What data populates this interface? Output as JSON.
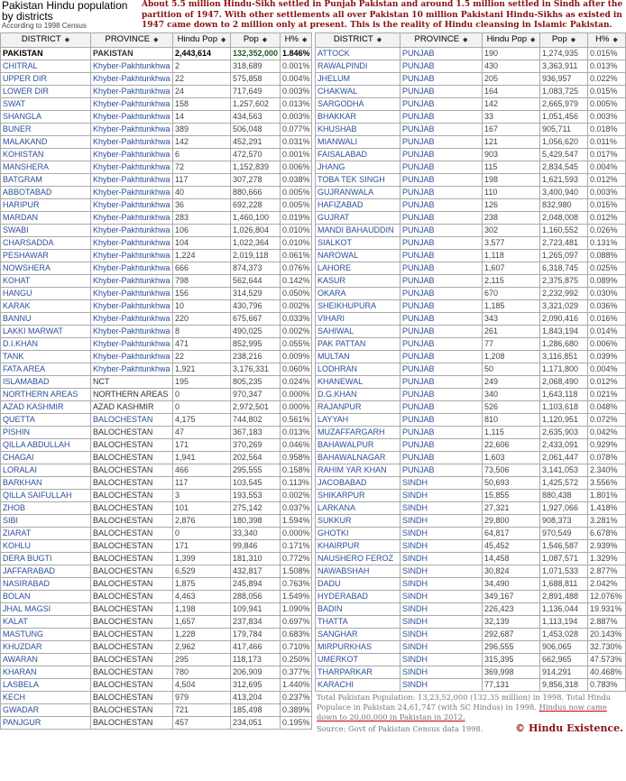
{
  "title": "Pakistan Hindu population by districts",
  "subtitle": "According to 1998 Census",
  "intro": "About 5.5 million Hindu-Sikh settled in Punjab Pakistan and around 1.5 million settled in Sindh after the partition of 1947. With other settlements all over Pakistan 10 million Pakistani Hindu-Sikhs as existed  in 1947 came down to 2 million only at present. This is the reality of Hindu cleansing in Islamic Pakistan.",
  "columns": [
    "DISTRICT",
    "PROVINCE",
    "Hindu Pop",
    "Pop",
    "H%"
  ],
  "sort_icon": "sort-diamond-icon",
  "colors": {
    "link": "#2a4f9a",
    "intro": "#8b1010",
    "header_bg": "#f2f2f2"
  },
  "left_rows": [
    [
      "PAKISTAN",
      "PAKISTAN",
      "2,443,614",
      "132,352,000",
      "1.846%"
    ],
    [
      "CHITRAL",
      "Khyber-Pakhtunkhwa",
      "2",
      "318,689",
      "0.001%"
    ],
    [
      "UPPER DIR",
      "Khyber-Pakhtunkhwa",
      "22",
      "575,858",
      "0.004%"
    ],
    [
      "LOWER DIR",
      "Khyber-Pakhtunkhwa",
      "24",
      "717,649",
      "0.003%"
    ],
    [
      "SWAT",
      "Khyber-Pakhtunkhwa",
      "158",
      "1,257,602",
      "0.013%"
    ],
    [
      "SHANGLA",
      "Khyber-Pakhtunkhwa",
      "14",
      "434,563",
      "0.003%"
    ],
    [
      "BUNER",
      "Khyber-Pakhtunkhwa",
      "389",
      "506,048",
      "0.077%"
    ],
    [
      "MALAKAND",
      "Khyber-Pakhtunkhwa",
      "142",
      "452,291",
      "0.031%"
    ],
    [
      "KOHISTAN",
      "Khyber-Pakhtunkhwa",
      "6",
      "472,570",
      "0.001%"
    ],
    [
      "MANSHERA",
      "Khyber-Pakhtunkhwa",
      "72",
      "1,152,839",
      "0.006%"
    ],
    [
      "BATGRAM",
      "Khyber-Pakhtunkhwa",
      "117",
      "307,278",
      "0.038%"
    ],
    [
      "ABBOTABAD",
      "Khyber-Pakhtunkhwa",
      "40",
      "880,666",
      "0.005%"
    ],
    [
      "HARIPUR",
      "Khyber-Pakhtunkhwa",
      "36",
      "692,228",
      "0.005%"
    ],
    [
      "MARDAN",
      "Khyber-Pakhtunkhwa",
      "283",
      "1,460,100",
      "0.019%"
    ],
    [
      "SWABI",
      "Khyber-Pakhtunkhwa",
      "106",
      "1,026,804",
      "0.010%"
    ],
    [
      "CHARSADDA",
      "Khyber-Pakhtunkhwa",
      "104",
      "1,022,364",
      "0.010%"
    ],
    [
      "PESHAWAR",
      "Khyber-Pakhtunkhwa",
      "1,224",
      "2,019,118",
      "0.061%"
    ],
    [
      "NOWSHERA",
      "Khyber-Pakhtunkhwa",
      "666",
      "874,373",
      "0.076%"
    ],
    [
      "KOHAT",
      "Khyber-Pakhtunkhwa",
      "798",
      "562,644",
      "0.142%"
    ],
    [
      "HANGU",
      "Khyber-Pakhtunkhwa",
      "156",
      "314,529",
      "0.050%"
    ],
    [
      "KARAK",
      "Khyber-Pakhtunkhwa",
      "10",
      "430,796",
      "0.002%"
    ],
    [
      "BANNU",
      "Khyber-Pakhtunkhwa",
      "220",
      "675,667",
      "0.033%"
    ],
    [
      "LAKKI MARWAT",
      "Khyber-Pakhtunkhwa",
      "8",
      "490,025",
      "0.002%"
    ],
    [
      "D.I.KHAN",
      "Khyber-Pakhtunkhwa",
      "471",
      "852,995",
      "0.055%"
    ],
    [
      "TANK",
      "Khyber-Pakhtunkhwa",
      "22",
      "238,216",
      "0.009%"
    ],
    [
      "FATA AREA",
      "Khyber-Pakhtunkhwa",
      "1,921",
      "3,176,331",
      "0.060%"
    ],
    [
      "ISLAMABAD",
      "NCT",
      "195",
      "805,235",
      "0.024%"
    ],
    [
      "NORTHERN AREAS",
      "NORTHERN AREAS",
      "0",
      "970,347",
      "0.000%"
    ],
    [
      "AZAD KASHMIR",
      "AZAD KASHMIR",
      "0",
      "2,972,501",
      "0.000%"
    ],
    [
      "QUETTA",
      "BALOCHESTAN",
      "4,175",
      "744,802",
      "0.561%"
    ],
    [
      "PISHIN",
      "BALOCHESTAN",
      "47",
      "367,183",
      "0.013%"
    ],
    [
      "QILLA ABDULLAH",
      "BALOCHESTAN",
      "171",
      "370,269",
      "0.046%"
    ],
    [
      "CHAGAI",
      "BALOCHESTAN",
      "1,941",
      "202,564",
      "0.958%"
    ],
    [
      "LORALAI",
      "BALOCHESTAN",
      "466",
      "295,555",
      "0.158%"
    ],
    [
      "BARKHAN",
      "BALOCHESTAN",
      "117",
      "103,545",
      "0.113%"
    ],
    [
      "QILLA SAIFULLAH",
      "BALOCHESTAN",
      "3",
      "193,553",
      "0.002%"
    ],
    [
      "ZHOB",
      "BALOCHESTAN",
      "101",
      "275,142",
      "0.037%"
    ],
    [
      "SIBI",
      "BALOCHESTAN",
      "2,876",
      "180,398",
      "1.594%"
    ],
    [
      "ZIARAT",
      "BALOCHESTAN",
      "0",
      "33,340",
      "0.000%"
    ],
    [
      "KOHLU",
      "BALOCHESTAN",
      "171",
      "99,846",
      "0.171%"
    ],
    [
      "DERA BUGTI",
      "BALOCHESTAN",
      "1,399",
      "181,310",
      "0.772%"
    ],
    [
      "JAFFARABAD",
      "BALOCHESTAN",
      "6,529",
      "432,817",
      "1.508%"
    ],
    [
      "NASIRABAD",
      "BALOCHESTAN",
      "1,875",
      "245,894",
      "0.763%"
    ],
    [
      "BOLAN",
      "BALOCHESTAN",
      "4,463",
      "288,056",
      "1.549%"
    ],
    [
      "JHAL MAGSI",
      "BALOCHESTAN",
      "1,198",
      "109,941",
      "1.090%"
    ],
    [
      "KALAT",
      "BALOCHESTAN",
      "1,657",
      "237,834",
      "0.697%"
    ],
    [
      "MASTUNG",
      "BALOCHESTAN",
      "1,228",
      "179,784",
      "0.683%"
    ],
    [
      "KHUZDAR",
      "BALOCHESTAN",
      "2,962",
      "417,466",
      "0.710%"
    ],
    [
      "AWARAN",
      "BALOCHESTAN",
      "295",
      "118,173",
      "0.250%"
    ],
    [
      "KHARAN",
      "BALOCHESTAN",
      "780",
      "206,909",
      "0.377%"
    ],
    [
      "LASBELA",
      "BALOCHESTAN",
      "4,504",
      "312,695",
      "1.440%"
    ],
    [
      "KECH",
      "BALOCHESTAN",
      "979",
      "413,204",
      "0.237%"
    ],
    [
      "GWADAR",
      "BALOCHESTAN",
      "721",
      "185,498",
      "0.389%"
    ],
    [
      "PANJGUR",
      "BALOCHESTAN",
      "457",
      "234,051",
      "0.195%"
    ]
  ],
  "right_rows": [
    [
      "ATTOCK",
      "PUNJAB",
      "190",
      "1,274,935",
      "0.015%"
    ],
    [
      "RAWALPINDI",
      "PUNJAB",
      "430",
      "3,363,911",
      "0.013%"
    ],
    [
      "JHELUM",
      "PUNJAB",
      "205",
      "936,957",
      "0.022%"
    ],
    [
      "CHAKWAL",
      "PUNJAB",
      "164",
      "1,083,725",
      "0.015%"
    ],
    [
      "SARGODHA",
      "PUNJAB",
      "142",
      "2,665,979",
      "0.005%"
    ],
    [
      "BHAKKAR",
      "PUNJAB",
      "33",
      "1,051,456",
      "0.003%"
    ],
    [
      "KHUSHAB",
      "PUNJAB",
      "167",
      "905,711",
      "0.018%"
    ],
    [
      "MIANWALI",
      "PUNJAB",
      "121",
      "1,056,620",
      "0.011%"
    ],
    [
      "FAISALABAD",
      "PUNJAB",
      "903",
      "5,429,547",
      "0.017%"
    ],
    [
      "JHANG",
      "PUNJAB",
      "115",
      "2,834,545",
      "0.004%"
    ],
    [
      "TOBA TEK SINGH",
      "PUNJAB",
      "198",
      "1,621,593",
      "0.012%"
    ],
    [
      "GUJRANWALA",
      "PUNJAB",
      "110",
      "3,400,940",
      "0.003%"
    ],
    [
      "HAFIZABAD",
      "PUNJAB",
      "126",
      "832,980",
      "0.015%"
    ],
    [
      "GUJRAT",
      "PUNJAB",
      "238",
      "2,048,008",
      "0.012%"
    ],
    [
      "MANDI BAHAUDDIN",
      "PUNJAB",
      "302",
      "1,160,552",
      "0.026%"
    ],
    [
      "SIALKOT",
      "PUNJAB",
      "3,577",
      "2,723,481",
      "0.131%"
    ],
    [
      "NAROWAL",
      "PUNJAB",
      "1,118",
      "1,265,097",
      "0.088%"
    ],
    [
      "LAHORE",
      "PUNJAB",
      "1,607",
      "6,318,745",
      "0.025%"
    ],
    [
      "KASUR",
      "PUNJAB",
      "2,115",
      "2,375,875",
      "0.089%"
    ],
    [
      "OKARA",
      "PUNJAB",
      "670",
      "2,232,992",
      "0.030%"
    ],
    [
      "SHEIKHUPURA",
      "PUNJAB",
      "1,185",
      "3,321,029",
      "0.036%"
    ],
    [
      "VIHARI",
      "PUNJAB",
      "343",
      "2,090,416",
      "0.016%"
    ],
    [
      "SAHIWAL",
      "PUNJAB",
      "261",
      "1,843,194",
      "0.014%"
    ],
    [
      "PAK PATTAN",
      "PUNJAB",
      "77",
      "1,286,680",
      "0.006%"
    ],
    [
      "MULTAN",
      "PUNJAB",
      "1,208",
      "3,116,851",
      "0.039%"
    ],
    [
      "LODHRAN",
      "PUNJAB",
      "50",
      "1,171,800",
      "0.004%"
    ],
    [
      "KHANEWAL",
      "PUNJAB",
      "249",
      "2,068,490",
      "0.012%"
    ],
    [
      "D.G.KHAN",
      "PUNJAB",
      "340",
      "1,643,118",
      "0.021%"
    ],
    [
      "RAJANPUR",
      "PUNJAB",
      "526",
      "1,103,618",
      "0.048%"
    ],
    [
      "LAYYAH",
      "PUNJAB",
      "810",
      "1,120,951",
      "0.072%"
    ],
    [
      "MUZAFFARGARH",
      "PUNJAB",
      "1,115",
      "2,635,903",
      "0.042%"
    ],
    [
      "BAHAWALPUR",
      "PUNJAB",
      "22,606",
      "2,433,091",
      "0.929%"
    ],
    [
      "BAHAWALNAGAR",
      "PUNJAB",
      "1,603",
      "2,061,447",
      "0.078%"
    ],
    [
      "RAHIM YAR KHAN",
      "PUNJAB",
      "73,506",
      "3,141,053",
      "2.340%"
    ],
    [
      "JACOBABAD",
      "SINDH",
      "50,693",
      "1,425,572",
      "3.556%"
    ],
    [
      "SHIKARPUR",
      "SINDH",
      "15,855",
      "880,438",
      "1.801%"
    ],
    [
      "LARKANA",
      "SINDH",
      "27,321",
      "1,927,066",
      "1.418%"
    ],
    [
      "SUKKUR",
      "SINDH",
      "29,800",
      "908,373",
      "3.281%"
    ],
    [
      "GHOTKI",
      "SINDH",
      "64,817",
      "970,549",
      "6.678%"
    ],
    [
      "KHAIRPUR",
      "SINDH",
      "45,452",
      "1,546,587",
      "2.939%"
    ],
    [
      "NAUSHERO FEROZ",
      "SINDH",
      "14,458",
      "1,087,571",
      "1.329%"
    ],
    [
      "NAWABSHAH",
      "SINDH",
      "30,824",
      "1,071,533",
      "2.877%"
    ],
    [
      "DADU",
      "SINDH",
      "34,490",
      "1,688,811",
      "2.042%"
    ],
    [
      "HYDERABAD",
      "SINDH",
      "349,167",
      "2,891,488",
      "12.076%"
    ],
    [
      "BADIN",
      "SINDH",
      "226,423",
      "1,136,044",
      "19.931%"
    ],
    [
      "THATTA",
      "SINDH",
      "32,139",
      "1,113,194",
      "2.887%"
    ],
    [
      "SANGHAR",
      "SINDH",
      "292,687",
      "1,453,028",
      "20.143%"
    ],
    [
      "MIRPURKHAS",
      "SINDH",
      "296,555",
      "906,065",
      "32.730%"
    ],
    [
      "UMERKOT",
      "SINDH",
      "315,395",
      "662,965",
      "47.573%"
    ],
    [
      "THARPARKAR",
      "SINDH",
      "369,998",
      "914,291",
      "40.468%"
    ],
    [
      "KARACHI",
      "SINDH",
      "77,131",
      "9,856,318",
      "0.783%"
    ]
  ],
  "footnote": {
    "text": "Total Pakistan Population: 13,23,52,000 (132.35 million) in 1998. Total Hindu Populace in Pakistan 24,61,747 (with SC Hindus) in 1998. ",
    "underlined": "Hindus now came down to 20,00,000 in Pakistan in 2012.",
    "source": "Source: Govt of Pakistan Census data 1998."
  },
  "watermark": "© Hindu Existence."
}
